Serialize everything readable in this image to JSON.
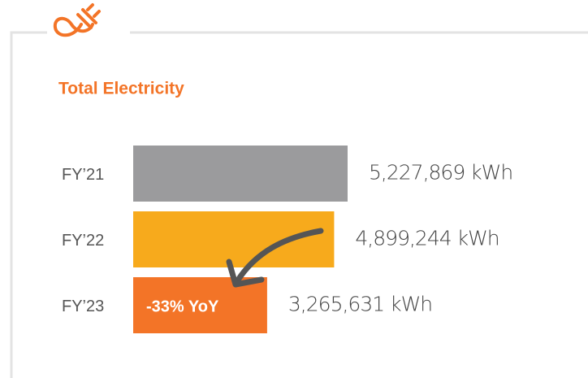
{
  "chart_data": {
    "type": "bar",
    "orientation": "horizontal",
    "title": "Total Electricity",
    "categories": [
      "FY’21",
      "FY’22",
      "FY’23"
    ],
    "values": [
      5227869,
      4899244,
      3265631
    ],
    "value_labels": [
      "5,227,869 kWh",
      "4,899,244 kWh",
      "3,265,631 kWh"
    ],
    "colors": [
      "#9b9b9d",
      "#f7aa1c",
      "#f37427"
    ],
    "annotation": "-33% YoY",
    "xlim": [
      0,
      6000000
    ]
  }
}
